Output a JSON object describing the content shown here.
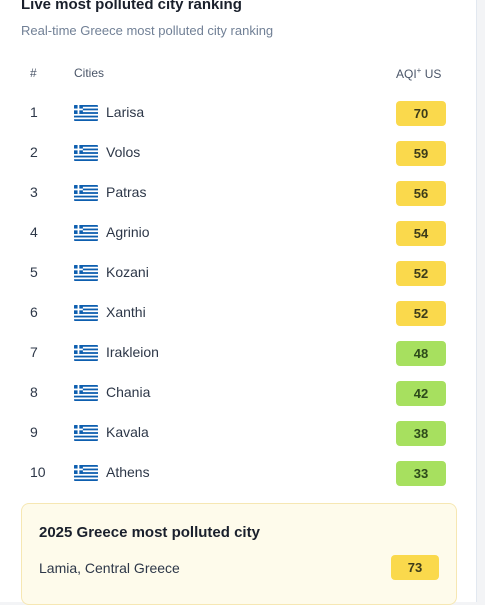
{
  "header": {
    "title": "Live most polluted city ranking",
    "subtitle": "Real-time Greece most polluted city ranking"
  },
  "table": {
    "col_rank": "#",
    "col_city": "Cities",
    "col_aqi": "AQI",
    "col_aqi_sup": "+",
    "col_aqi_unit": "US",
    "rows": [
      {
        "rank": "1",
        "city": "Larisa",
        "aqi": "70",
        "level": "moderate"
      },
      {
        "rank": "2",
        "city": "Volos",
        "aqi": "59",
        "level": "moderate"
      },
      {
        "rank": "3",
        "city": "Patras",
        "aqi": "56",
        "level": "moderate"
      },
      {
        "rank": "4",
        "city": "Agrinio",
        "aqi": "54",
        "level": "moderate"
      },
      {
        "rank": "5",
        "city": "Kozani",
        "aqi": "52",
        "level": "moderate"
      },
      {
        "rank": "6",
        "city": "Xanthi",
        "aqi": "52",
        "level": "moderate"
      },
      {
        "rank": "7",
        "city": "Irakleion",
        "aqi": "48",
        "level": "good"
      },
      {
        "rank": "8",
        "city": "Chania",
        "aqi": "42",
        "level": "good"
      },
      {
        "rank": "9",
        "city": "Kavala",
        "aqi": "38",
        "level": "good"
      },
      {
        "rank": "10",
        "city": "Athens",
        "aqi": "33",
        "level": "good"
      }
    ]
  },
  "highlight": {
    "title": "2025 Greece most polluted city",
    "city": "Lamia, Central Greece",
    "aqi": "73"
  },
  "icons": {
    "flag": "greece-flag-icon"
  },
  "colors": {
    "moderate": "#fad94c",
    "good": "#a7e05f",
    "flag_blue": "#0d5eaf"
  }
}
